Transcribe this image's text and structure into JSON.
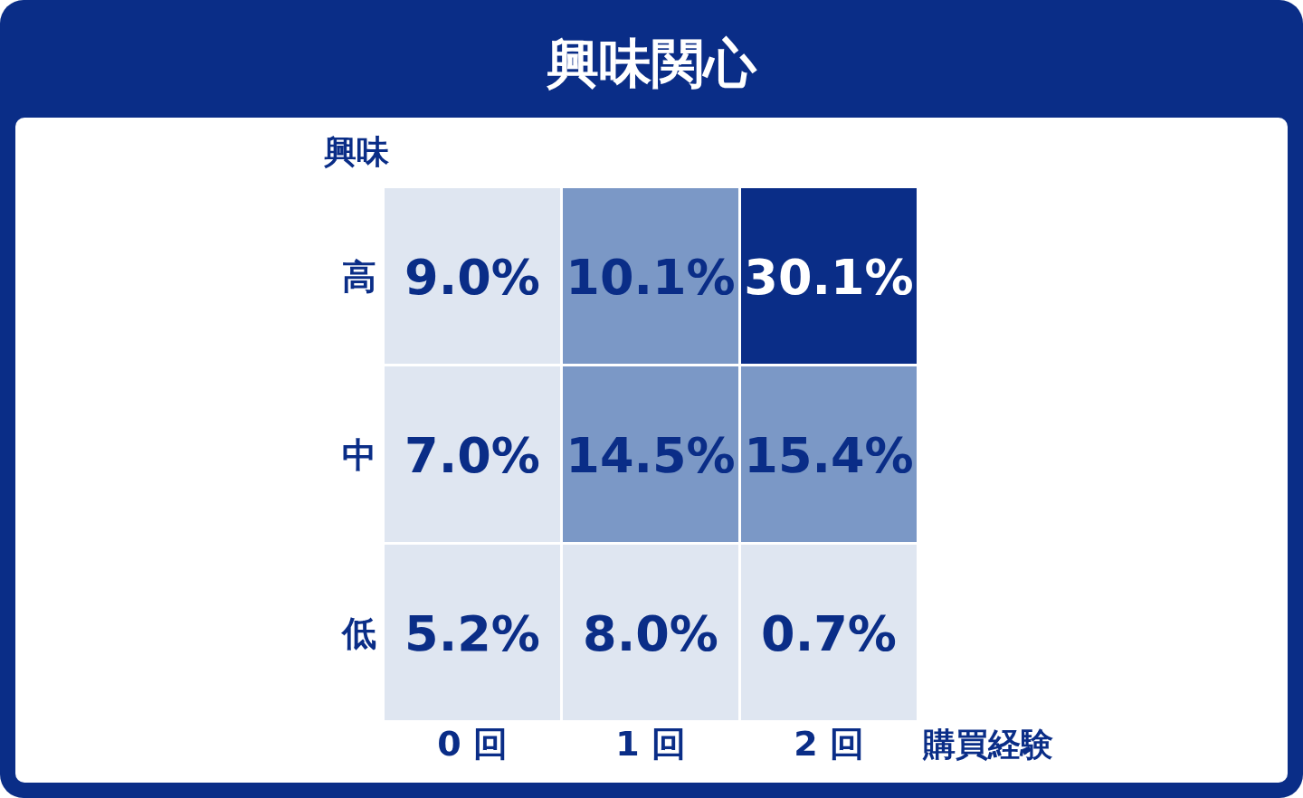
{
  "chart_data": {
    "type": "heatmap",
    "title": "興味関心",
    "ylabel": "興味",
    "xlabel": "購買経験",
    "categories": [
      "0 回",
      "1 回",
      "2 回"
    ],
    "y_categories": [
      "高",
      "中",
      "低"
    ],
    "cells": [
      [
        9.0,
        10.1,
        30.1
      ],
      [
        7.0,
        14.5,
        15.4
      ],
      [
        5.2,
        8.0,
        0.7
      ]
    ],
    "cell_labels": [
      [
        "9.0%",
        "10.1%",
        "30.1%"
      ],
      [
        "7.0%",
        "14.5%",
        "15.4%"
      ],
      [
        "5.2%",
        "8.0%",
        "0.7%"
      ]
    ],
    "colors": [
      "#dfe6f1",
      "#7b98c6",
      "#0a2d87"
    ]
  }
}
